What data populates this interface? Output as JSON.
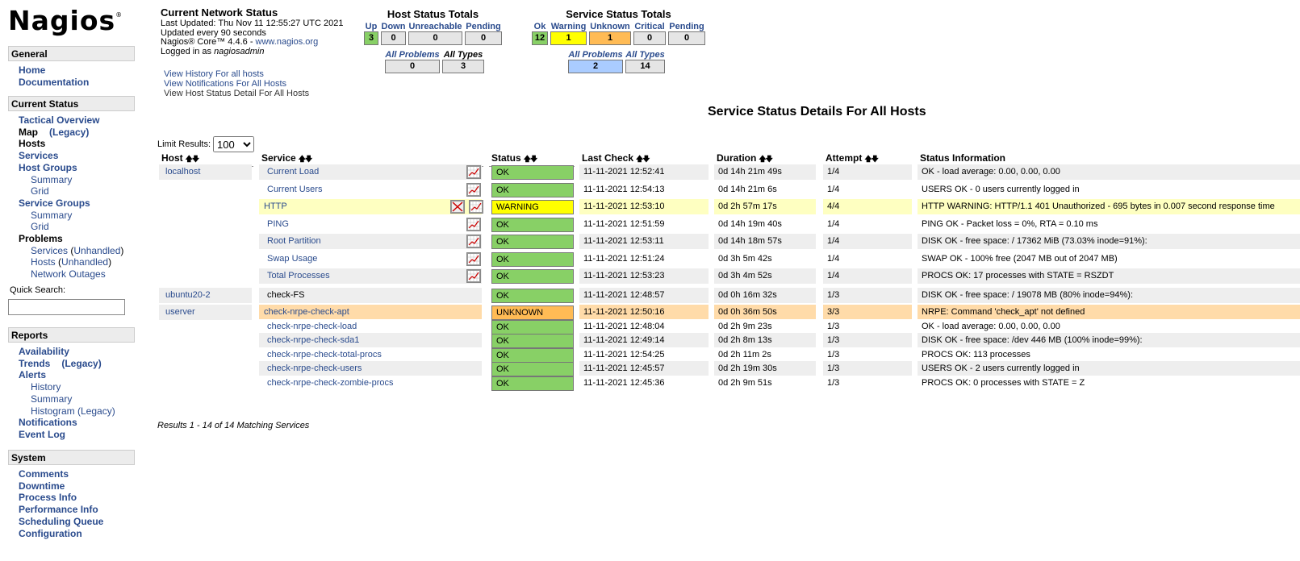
{
  "logo": {
    "text": "Nagios",
    "mark": "®"
  },
  "nav": {
    "general": {
      "title": "General",
      "items": [
        "Home",
        "Documentation"
      ]
    },
    "current": {
      "title": "Current Status",
      "tactical": "Tactical Overview",
      "map": "Map",
      "map_legacy": "(Legacy)",
      "hosts": "Hosts",
      "services": "Services",
      "hostgroups": "Host Groups",
      "hg_summary": "Summary",
      "hg_grid": "Grid",
      "servicegroups": "Service Groups",
      "sg_summary": "Summary",
      "sg_grid": "Grid",
      "problems": "Problems",
      "p_services": "Services",
      "p_services_unh": "Unhandled",
      "p_hosts": "Hosts",
      "p_hosts_unh": "Unhandled",
      "p_outages": "Network Outages",
      "quick_search": "Quick Search:"
    },
    "reports": {
      "title": "Reports",
      "availability": "Availability",
      "trends": "Trends",
      "trends_legacy": "(Legacy)",
      "alerts": "Alerts",
      "history": "History",
      "summary": "Summary",
      "histogram": "Histogram (Legacy)",
      "notifications": "Notifications",
      "eventlog": "Event Log"
    },
    "system": {
      "title": "System",
      "items": [
        "Comments",
        "Downtime",
        "Process Info",
        "Performance Info",
        "Scheduling Queue",
        "Configuration"
      ]
    }
  },
  "network_status": {
    "title": "Current Network Status",
    "last_updated": "Last Updated: Thu Nov 11 12:55:27 UTC 2021",
    "updated_every": "Updated every 90 seconds",
    "core_prefix": "Nagios® Core™ 4.4.6 - ",
    "core_link": "www.nagios.org",
    "logged_prefix": "Logged in as ",
    "user": "nagiosadmin",
    "links": [
      "View History For all hosts",
      "View Notifications For All Hosts",
      "View Host Status Detail For All Hosts"
    ]
  },
  "host_totals": {
    "title": "Host Status Totals",
    "headers": [
      "Up",
      "Down",
      "Unreachable",
      "Pending"
    ],
    "values": [
      "3",
      "0",
      "0",
      "0"
    ],
    "prob_headers": [
      "All Problems",
      "All Types"
    ],
    "prob_values": [
      "0",
      "3"
    ]
  },
  "service_totals": {
    "title": "Service Status Totals",
    "headers": [
      "Ok",
      "Warning",
      "Unknown",
      "Critical",
      "Pending"
    ],
    "values": [
      "12",
      "1",
      "1",
      "0",
      "0"
    ],
    "prob_headers": [
      "All Problems",
      "All Types"
    ],
    "prob_values": [
      "2",
      "14"
    ]
  },
  "page_title": "Service Status Details For All Hosts",
  "limit": {
    "label": "Limit Results:",
    "value": "100"
  },
  "columns": [
    "Host",
    "Service",
    "Status",
    "Last Check",
    "Duration",
    "Attempt",
    "Status Information"
  ],
  "rows": [
    {
      "host": "localhost",
      "service": "Current Load",
      "status": "OK",
      "last": "11-11-2021 12:52:41",
      "dur": "0d 14h 21m 49s",
      "att": "1/4",
      "info": "OK - load average: 0.00, 0.00, 0.00"
    },
    {
      "host": "",
      "service": "Current Users",
      "status": "OK",
      "last": "11-11-2021 12:54:13",
      "dur": "0d 14h 21m 6s",
      "att": "1/4",
      "info": "USERS OK - 0 users currently logged in"
    },
    {
      "host": "",
      "service": "HTTP",
      "status": "WARNING",
      "last": "11-11-2021 12:53:10",
      "dur": "0d 2h 57m 17s",
      "att": "4/4",
      "info": "HTTP WARNING: HTTP/1.1 401 Unauthorized - 695 bytes in 0.007 second response time"
    },
    {
      "host": "",
      "service": "PING",
      "status": "OK",
      "last": "11-11-2021 12:51:59",
      "dur": "0d 14h 19m 40s",
      "att": "1/4",
      "info": "PING OK - Packet loss = 0%, RTA = 0.10 ms"
    },
    {
      "host": "",
      "service": "Root Partition",
      "status": "OK",
      "last": "11-11-2021 12:53:11",
      "dur": "0d 14h 18m 57s",
      "att": "1/4",
      "info": "DISK OK - free space: / 17362 MiB (73.03% inode=91%):"
    },
    {
      "host": "",
      "service": "Swap Usage",
      "status": "OK",
      "last": "11-11-2021 12:51:24",
      "dur": "0d 3h 5m 42s",
      "att": "1/4",
      "info": "SWAP OK - 100% free (2047 MB out of 2047 MB)"
    },
    {
      "host": "",
      "service": "Total Processes",
      "status": "OK",
      "last": "11-11-2021 12:53:23",
      "dur": "0d 3h 4m 52s",
      "att": "1/4",
      "info": "PROCS OK: 17 processes with STATE = RSZDT"
    },
    {
      "host": "ubuntu20-2",
      "service": "check-FS",
      "status": "OK",
      "last": "11-11-2021 12:48:57",
      "dur": "0d 0h 16m 32s",
      "att": "1/3",
      "info": "DISK OK - free space: / 19078 MB (80% inode=94%):"
    },
    {
      "host": "userver",
      "service": "check-nrpe-check-apt",
      "status": "UNKNOWN",
      "last": "11-11-2021 12:50:16",
      "dur": "0d 0h 36m 50s",
      "att": "3/3",
      "info": "NRPE: Command 'check_apt' not defined"
    },
    {
      "host": "",
      "service": "check-nrpe-check-load",
      "status": "OK",
      "last": "11-11-2021 12:48:04",
      "dur": "0d 2h 9m 23s",
      "att": "1/3",
      "info": "OK - load average: 0.00, 0.00, 0.00"
    },
    {
      "host": "",
      "service": "check-nrpe-check-sda1",
      "status": "OK",
      "last": "11-11-2021 12:49:14",
      "dur": "0d 2h 8m 13s",
      "att": "1/3",
      "info": "DISK OK - free space: /dev 446 MB (100% inode=99%):"
    },
    {
      "host": "",
      "service": "check-nrpe-check-total-procs",
      "status": "OK",
      "last": "11-11-2021 12:54:25",
      "dur": "0d 2h 11m 2s",
      "att": "1/3",
      "info": "PROCS OK: 113 processes"
    },
    {
      "host": "",
      "service": "check-nrpe-check-users",
      "status": "OK",
      "last": "11-11-2021 12:45:57",
      "dur": "0d 2h 19m 30s",
      "att": "1/3",
      "info": "USERS OK - 2 users currently logged in"
    },
    {
      "host": "",
      "service": "check-nrpe-check-zombie-procs",
      "status": "OK",
      "last": "11-11-2021 12:45:36",
      "dur": "0d 2h 9m 51s",
      "att": "1/3",
      "info": "PROCS OK: 0 processes with STATE = Z"
    }
  ],
  "results": "Results 1 - 14 of 14 Matching Services",
  "colors": {
    "ok": "#88d066",
    "warning": "#ffff00",
    "unknown": "#ffbb55",
    "link": "#2a4b8d"
  }
}
